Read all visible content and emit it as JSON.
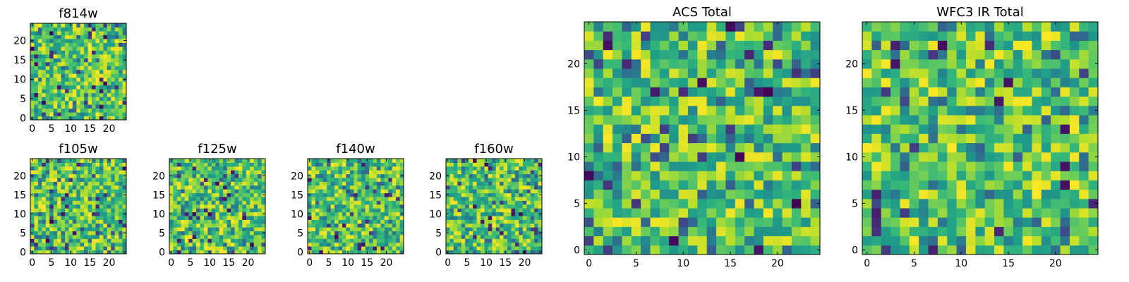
{
  "chart_data": [
    {
      "type": "heatmap",
      "title": "f814w",
      "grid": [
        25,
        25
      ],
      "seed": 11,
      "colormap": "viridis",
      "xticks": [
        "0",
        "5",
        "10",
        "15",
        "20"
      ],
      "yticks": [
        "0",
        "5",
        "10",
        "15",
        "20"
      ],
      "xlim": [
        0,
        25
      ],
      "ylim": [
        0,
        25
      ]
    },
    {
      "type": "heatmap",
      "title": "f105w",
      "grid": [
        25,
        25
      ],
      "seed": 23,
      "colormap": "viridis",
      "xticks": [
        "0",
        "5",
        "10",
        "15",
        "20"
      ],
      "yticks": [
        "0",
        "5",
        "10",
        "15",
        "20"
      ],
      "xlim": [
        0,
        25
      ],
      "ylim": [
        0,
        25
      ]
    },
    {
      "type": "heatmap",
      "title": "f125w",
      "grid": [
        25,
        25
      ],
      "seed": 37,
      "colormap": "viridis",
      "xticks": [
        "0",
        "5",
        "10",
        "15",
        "20"
      ],
      "yticks": [
        "0",
        "5",
        "10",
        "15",
        "20"
      ],
      "xlim": [
        0,
        25
      ],
      "ylim": [
        0,
        25
      ]
    },
    {
      "type": "heatmap",
      "title": "f140w",
      "grid": [
        25,
        25
      ],
      "seed": 41,
      "colormap": "viridis",
      "xticks": [
        "0",
        "5",
        "10",
        "15",
        "20"
      ],
      "yticks": [
        "0",
        "5",
        "10",
        "15",
        "20"
      ],
      "xlim": [
        0,
        25
      ],
      "ylim": [
        0,
        25
      ]
    },
    {
      "type": "heatmap",
      "title": "f160w",
      "grid": [
        25,
        25
      ],
      "seed": 53,
      "colormap": "viridis",
      "xticks": [
        "0",
        "5",
        "10",
        "15",
        "20"
      ],
      "yticks": [
        "0",
        "5",
        "10",
        "15",
        "20"
      ],
      "xlim": [
        0,
        25
      ],
      "ylim": [
        0,
        25
      ]
    },
    {
      "type": "heatmap",
      "title": "ACS Total",
      "grid": [
        25,
        25
      ],
      "seed": 67,
      "colormap": "viridis",
      "xticks": [
        "0",
        "5",
        "10",
        "15",
        "20"
      ],
      "yticks": [
        "0",
        "5",
        "10",
        "15",
        "20"
      ],
      "xlim": [
        0,
        25
      ],
      "ylim": [
        0,
        25
      ]
    },
    {
      "type": "heatmap",
      "title": "WFC3 IR Total",
      "grid": [
        25,
        25
      ],
      "seed": 79,
      "colormap": "viridis",
      "xticks": [
        "0",
        "5",
        "10",
        "15",
        "20"
      ],
      "yticks": [
        "0",
        "5",
        "10",
        "15",
        "20"
      ],
      "xlim": [
        0,
        25
      ],
      "ylim": [
        0,
        25
      ]
    }
  ]
}
